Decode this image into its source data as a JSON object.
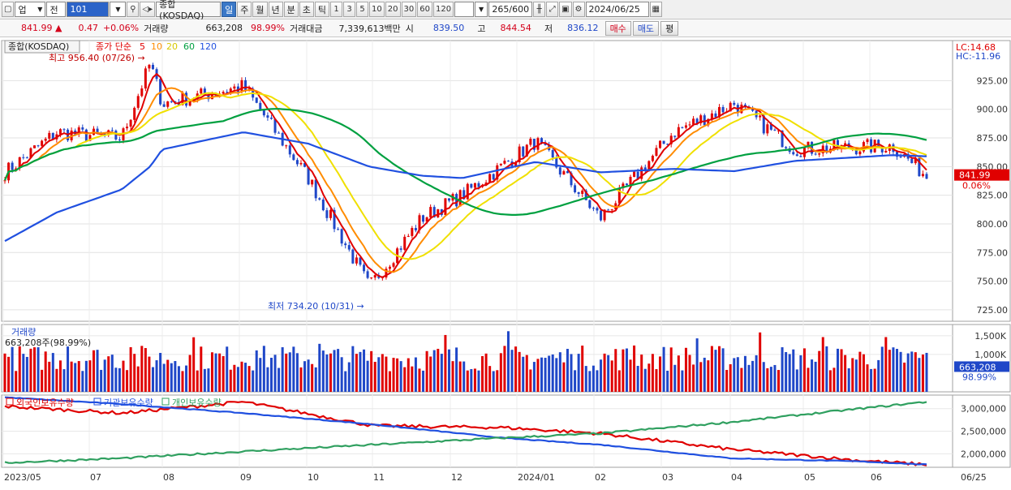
{
  "toolbar": {
    "market": "업",
    "mode": "전",
    "code": "101",
    "name": "종합(KOSDAQ)",
    "periods": [
      "일",
      "주",
      "월",
      "년",
      "분",
      "초",
      "틱"
    ],
    "active_period": "일",
    "intervals": [
      "1",
      "3",
      "5",
      "10",
      "20",
      "30",
      "60",
      "120"
    ],
    "count": "265/600",
    "date": "2024/06/25"
  },
  "info": {
    "price": "841.99",
    "change_arrow": "▲",
    "change": "0.47",
    "change_pct": "+0.06%",
    "volume_label": "거래량",
    "volume": "663,208",
    "volume_pct": "98.99%",
    "amount_label": "거래대금",
    "amount": "7,339,613백만",
    "open_label": "시",
    "open": "839.50",
    "high_label": "고",
    "high": "844.54",
    "low_label": "저",
    "low": "836.12",
    "buy_label": "매수",
    "sell_label": "매도",
    "eval_label": "평"
  },
  "chart_data": [
    {
      "type": "candlestick",
      "title": "종합(KOSDAQ)",
      "legend": [
        "종가 단순",
        "5",
        "10",
        "20",
        "60",
        "120"
      ],
      "ma_colors": {
        "5": "#e00000",
        "10": "#ff8c00",
        "20": "#f0e000",
        "60": "#00a040",
        "120": "#2050e0"
      },
      "ylim": [
        715,
        960
      ],
      "yticks": [
        "925.00",
        "900.00",
        "875.00",
        "850.00",
        "825.00",
        "800.00",
        "775.00",
        "750.00",
        "725.00"
      ],
      "high_marker": "최고 956.40 (07/26)",
      "low_marker": "최저 734.20 (10/31)",
      "lc": "LC:14.68",
      "hc": "HC:-11.96",
      "last_price": "841.99",
      "last_pct": "0.06%",
      "close_series": {
        "dates": [
          "2023/05",
          "2023/06",
          "2023/07",
          "2023/07/26",
          "2023/08",
          "2023/09",
          "2023/10",
          "2023/10/31",
          "2023/11",
          "2023/12",
          "2024/01",
          "2024/02",
          "2024/03",
          "2024/04",
          "2024/05",
          "2024/06",
          "2024/06/25"
        ],
        "values": [
          845,
          880,
          875,
          940,
          905,
          920,
          840,
          745,
          805,
          825,
          872,
          805,
          880,
          905,
          865,
          868,
          841.99
        ]
      },
      "ma5_approx": [
        845,
        875,
        880,
        920,
        890,
        915,
        845,
        750,
        800,
        830,
        875,
        810,
        875,
        910,
        862,
        860,
        846
      ],
      "ma120_approx": [
        785,
        810,
        830,
        850,
        865,
        880,
        870,
        850,
        842,
        840,
        854,
        845,
        848,
        846,
        855,
        860,
        859
      ]
    },
    {
      "type": "bar",
      "title": "거래량",
      "sub": "663,208주(98.99%)",
      "yticks": [
        "1,500K",
        "1,000K"
      ],
      "last": "663,208",
      "last_pct": "98.99%",
      "values_k": [
        780,
        1050,
        820,
        960,
        1120,
        1090,
        960,
        980,
        1140,
        1020,
        1230,
        1110,
        920,
        1180,
        1450,
        1310,
        980,
        1000,
        1090,
        880,
        980,
        1500,
        1040,
        1140,
        1200,
        1480,
        930,
        900,
        1000,
        1250,
        663
      ]
    },
    {
      "type": "line",
      "legend": [
        "외국인보유수량",
        "기관보유수량",
        "개인보유수량"
      ],
      "colors": [
        "#e00000",
        "#2050e0",
        "#30a060"
      ],
      "yticks": [
        "3,000,000",
        "2,500,000",
        "2,000,000"
      ],
      "ylim": [
        1700000,
        3300000
      ]
    }
  ],
  "xaxis": {
    "labels": [
      "2023/05",
      "07",
      "08",
      "09",
      "10",
      "11",
      "12",
      "2024/01",
      "02",
      "03",
      "04",
      "05",
      "06"
    ],
    "right_label": "06/25"
  }
}
